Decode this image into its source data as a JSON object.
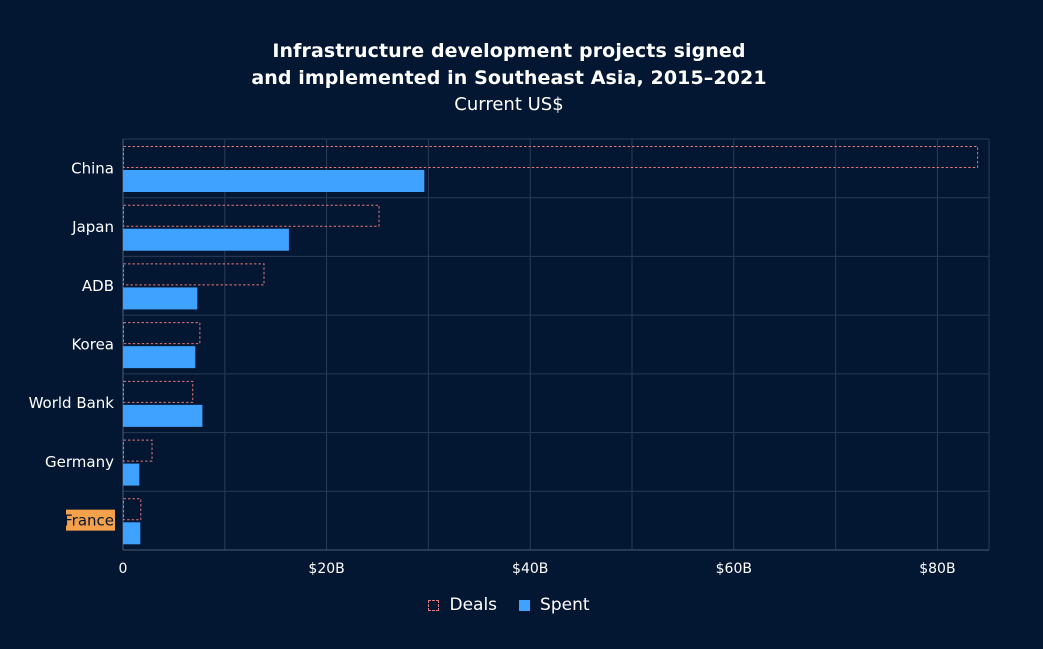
{
  "chart_data": {
    "type": "bar",
    "orientation": "horizontal",
    "title_lines": [
      "Infrastructure development projects signed",
      "and implemented in Southeast Asia, 2015–2021"
    ],
    "subtitle": "Current US$",
    "categories": [
      "China",
      "Japan",
      "ADB",
      "Korea",
      "World Bank",
      "Germany",
      "France"
    ],
    "highlighted_category": "France",
    "series": [
      {
        "name": "Deals",
        "values": [
          84.0,
          25.2,
          13.9,
          7.6,
          6.9,
          2.9,
          1.8
        ]
      },
      {
        "name": "Spent",
        "values": [
          29.6,
          16.3,
          7.3,
          7.1,
          7.8,
          1.6,
          1.7
        ]
      }
    ],
    "x_ticks": [
      {
        "value": 0,
        "label": "0"
      },
      {
        "value": 20,
        "label": "$20B"
      },
      {
        "value": 40,
        "label": "$40B"
      },
      {
        "value": 60,
        "label": "$60B"
      },
      {
        "value": 80,
        "label": "$80B"
      }
    ],
    "xlim": [
      0,
      85
    ],
    "grid": true,
    "legend_position": "bottom",
    "colors": {
      "background": "#031632",
      "grid": "#2a3b55",
      "deals_outline": "#e0797b",
      "spent": "#3fa2ff",
      "highlight": "#f5a04a"
    }
  }
}
